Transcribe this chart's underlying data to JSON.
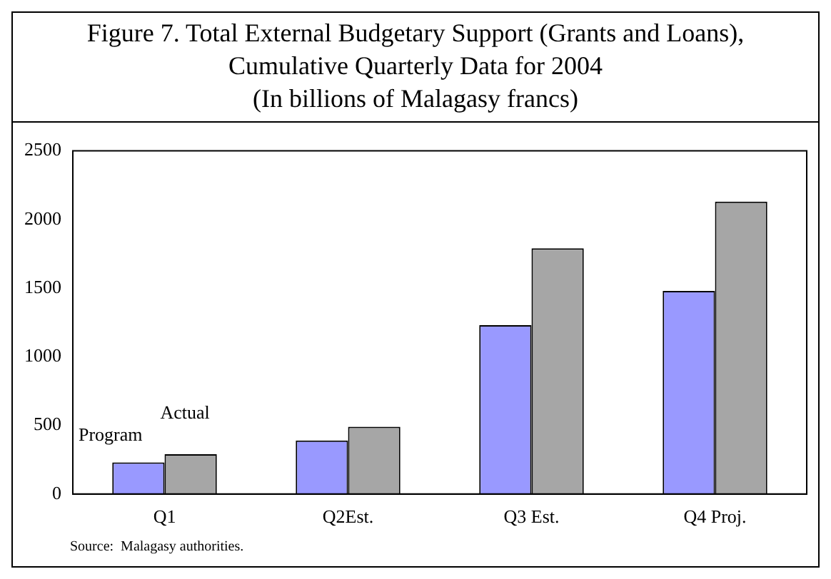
{
  "chart_data": {
    "type": "bar",
    "title": "Figure 7. Total External Budgetary Support (Grants and Loans), Cumulative Quarterly Data for 2004",
    "subtitle": "(In billions of Malagasy francs)",
    "categories": [
      "Q1",
      "Q2Est.",
      "Q3 Est.",
      "Q4 Proj."
    ],
    "series": [
      {
        "name": "Program",
        "color": "#9999ff",
        "values": [
          230,
          390,
          1230,
          1480
        ]
      },
      {
        "name": "Actual",
        "color": "#a6a6a6",
        "values": [
          290,
          490,
          1790,
          2130
        ]
      }
    ],
    "ylim": [
      0,
      2500
    ],
    "yticks": [
      0,
      500,
      1000,
      1500,
      2000,
      2500
    ],
    "grid": false,
    "legend": false,
    "annotations": [
      "Source:  Malagasy authorities."
    ]
  }
}
